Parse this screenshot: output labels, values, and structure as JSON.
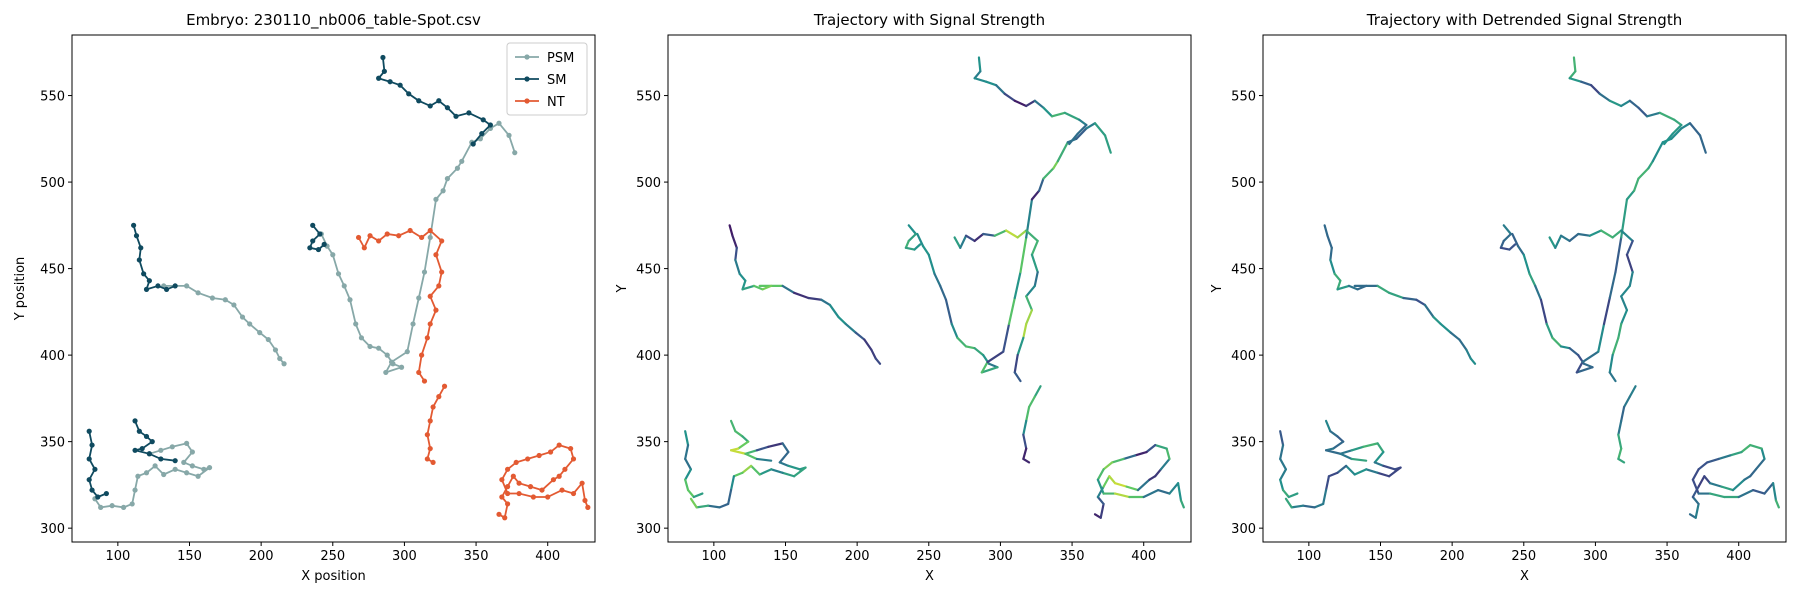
{
  "figure": {
    "background": "#ffffff"
  },
  "colors": {
    "psm": "#87a8a8",
    "sm": "#0f4a5f",
    "nt": "#e35a32",
    "viridis": [
      "#440154",
      "#3b528b",
      "#21918c",
      "#5ec962",
      "#fde725"
    ]
  },
  "chart_data": [
    {
      "type": "line",
      "title": "Embryo: 230110_nb006_table-Spot.csv",
      "xlabel": "X position",
      "ylabel": "Y position",
      "xlim": [
        68,
        433
      ],
      "ylim": [
        292,
        585
      ],
      "xticks": [
        100,
        150,
        200,
        250,
        300,
        350,
        400
      ],
      "yticks": [
        300,
        350,
        400,
        450,
        500,
        550
      ],
      "markers": true,
      "legend_position": "top-right",
      "legend": [
        "PSM",
        "SM",
        "NT"
      ],
      "series": [
        {
          "name": "PSM",
          "color": "#87a8a8",
          "tracks": [
            [
              [
                132,
                440
              ],
              [
                148,
                440
              ],
              [
                156,
                436
              ],
              [
                166,
                433
              ],
              [
                175,
                432
              ],
              [
                181,
                429
              ],
              [
                187,
                422
              ],
              [
                192,
                418
              ],
              [
                199,
                413
              ],
              [
                205,
                409
              ],
              [
                210,
                403
              ],
              [
                213,
                398
              ],
              [
                216,
                395
              ]
            ],
            [
              [
                122,
                343
              ],
              [
                130,
                345
              ],
              [
                138,
                347
              ],
              [
                148,
                349
              ],
              [
                152,
                344
              ],
              [
                146,
                338
              ],
              [
                152,
                336
              ],
              [
                160,
                334
              ],
              [
                164,
                335
              ],
              [
                156,
                330
              ],
              [
                148,
                332
              ],
              [
                140,
                334
              ],
              [
                132,
                331
              ],
              [
                126,
                336
              ],
              [
                120,
                332
              ],
              [
                114,
                330
              ],
              [
                112,
                322
              ],
              [
                110,
                314
              ],
              [
                104,
                312
              ],
              [
                96,
                313
              ],
              [
                88,
                312
              ],
              [
                84,
                317
              ]
            ],
            [
              [
                242,
                470
              ],
              [
                246,
                463
              ],
              [
                250,
                458
              ],
              [
                254,
                447
              ],
              [
                258,
                440
              ],
              [
                262,
                432
              ],
              [
                266,
                418
              ],
              [
                270,
                410
              ],
              [
                276,
                405
              ],
              [
                282,
                404
              ],
              [
                288,
                400
              ],
              [
                292,
                395
              ],
              [
                298,
                393
              ],
              [
                287,
                390
              ],
              [
                291,
                396
              ],
              [
                302,
                402
              ],
              [
                306,
                418
              ],
              [
                310,
                433
              ],
              [
                314,
                448
              ],
              [
                318,
                468
              ],
              [
                322,
                490
              ],
              [
                327,
                495
              ],
              [
                330,
                502
              ],
              [
                337,
                508
              ],
              [
                340,
                512
              ],
              [
                347,
                523
              ],
              [
                353,
                525
              ],
              [
                360,
                531
              ],
              [
                366,
                534
              ],
              [
                373,
                527
              ],
              [
                377,
                517
              ]
            ]
          ]
        },
        {
          "name": "SM",
          "color": "#0f4a5f",
          "tracks": [
            [
              [
                111,
                475
              ],
              [
                113,
                469
              ],
              [
                116,
                462
              ],
              [
                115,
                455
              ],
              [
                118,
                447
              ],
              [
                122,
                443
              ],
              [
                120,
                438
              ],
              [
                128,
                440
              ],
              [
                134,
                438
              ],
              [
                140,
                440
              ]
            ],
            [
              [
                112,
                362
              ],
              [
                115,
                356
              ],
              [
                120,
                353
              ],
              [
                124,
                350
              ],
              [
                117,
                346
              ],
              [
                112,
                345
              ],
              [
                122,
                343
              ],
              [
                130,
                340
              ],
              [
                140,
                339
              ]
            ],
            [
              [
                80,
                356
              ],
              [
                82,
                348
              ],
              [
                80,
                340
              ],
              [
                84,
                334
              ],
              [
                80,
                328
              ],
              [
                82,
                322
              ],
              [
                86,
                318
              ],
              [
                92,
                320
              ]
            ],
            [
              [
                236,
                475
              ],
              [
                241,
                470
              ],
              [
                236,
                466
              ],
              [
                234,
                462
              ],
              [
                240,
                461
              ],
              [
                244,
                464
              ]
            ],
            [
              [
                285,
                572
              ],
              [
                286,
                564
              ],
              [
                282,
                560
              ],
              [
                290,
                558
              ],
              [
                297,
                556
              ],
              [
                303,
                551
              ],
              [
                310,
                547
              ],
              [
                318,
                544
              ],
              [
                324,
                547
              ],
              [
                330,
                543
              ],
              [
                336,
                538
              ],
              [
                345,
                540
              ],
              [
                355,
                536
              ],
              [
                360,
                533
              ],
              [
                354,
                528
              ],
              [
                348,
                522
              ]
            ]
          ]
        },
        {
          "name": "NT",
          "color": "#e35a32",
          "tracks": [
            [
              [
                268,
                468
              ],
              [
                272,
                462
              ],
              [
                276,
                469
              ],
              [
                282,
                466
              ],
              [
                288,
                470
              ],
              [
                296,
                469
              ],
              [
                304,
                472
              ],
              [
                312,
                468
              ],
              [
                318,
                472
              ],
              [
                326,
                466
              ],
              [
                322,
                458
              ],
              [
                326,
                448
              ],
              [
                324,
                440
              ],
              [
                318,
                434
              ],
              [
                322,
                426
              ],
              [
                318,
                418
              ],
              [
                316,
                410
              ],
              [
                312,
                400
              ],
              [
                310,
                390
              ],
              [
                314,
                385
              ]
            ],
            [
              [
                328,
                382
              ],
              [
                324,
                376
              ],
              [
                320,
                370
              ],
              [
                318,
                362
              ],
              [
                316,
                354
              ],
              [
                318,
                346
              ],
              [
                316,
                340
              ],
              [
                320,
                338
              ]
            ],
            [
              [
                366,
                308
              ],
              [
                370,
                306
              ],
              [
                372,
                314
              ],
              [
                368,
                318
              ],
              [
                372,
                324
              ],
              [
                376,
                330
              ],
              [
                380,
                326
              ],
              [
                388,
                324
              ],
              [
                396,
                322
              ],
              [
                404,
                328
              ],
              [
                408,
                330
              ],
              [
                412,
                334
              ],
              [
                418,
                340
              ],
              [
                416,
                346
              ],
              [
                408,
                348
              ],
              [
                402,
                344
              ],
              [
                394,
                342
              ],
              [
                386,
                340
              ],
              [
                378,
                338
              ],
              [
                372,
                334
              ],
              [
                368,
                328
              ],
              [
                372,
                320
              ],
              [
                380,
                320
              ],
              [
                390,
                318
              ],
              [
                400,
                318
              ],
              [
                410,
                322
              ],
              [
                418,
                320
              ],
              [
                424,
                326
              ],
              [
                426,
                316
              ],
              [
                428,
                312
              ]
            ]
          ]
        }
      ]
    },
    {
      "type": "line",
      "title": "Trajectory with Signal Strength",
      "xlabel": "X",
      "ylabel": "Y",
      "xlim": [
        68,
        433
      ],
      "ylim": [
        292,
        585
      ],
      "xticks": [
        100,
        150,
        200,
        250,
        300,
        350,
        400
      ],
      "yticks": [
        300,
        350,
        400,
        450,
        500,
        550
      ]
    },
    {
      "type": "line",
      "title": "Trajectory with Detrended Signal Strength",
      "xlabel": "X",
      "ylabel": "Y",
      "xlim": [
        68,
        433
      ],
      "ylim": [
        292,
        585
      ],
      "xticks": [
        100,
        150,
        200,
        250,
        300,
        350,
        400
      ],
      "yticks": [
        300,
        350,
        400,
        450,
        500,
        550
      ]
    }
  ]
}
